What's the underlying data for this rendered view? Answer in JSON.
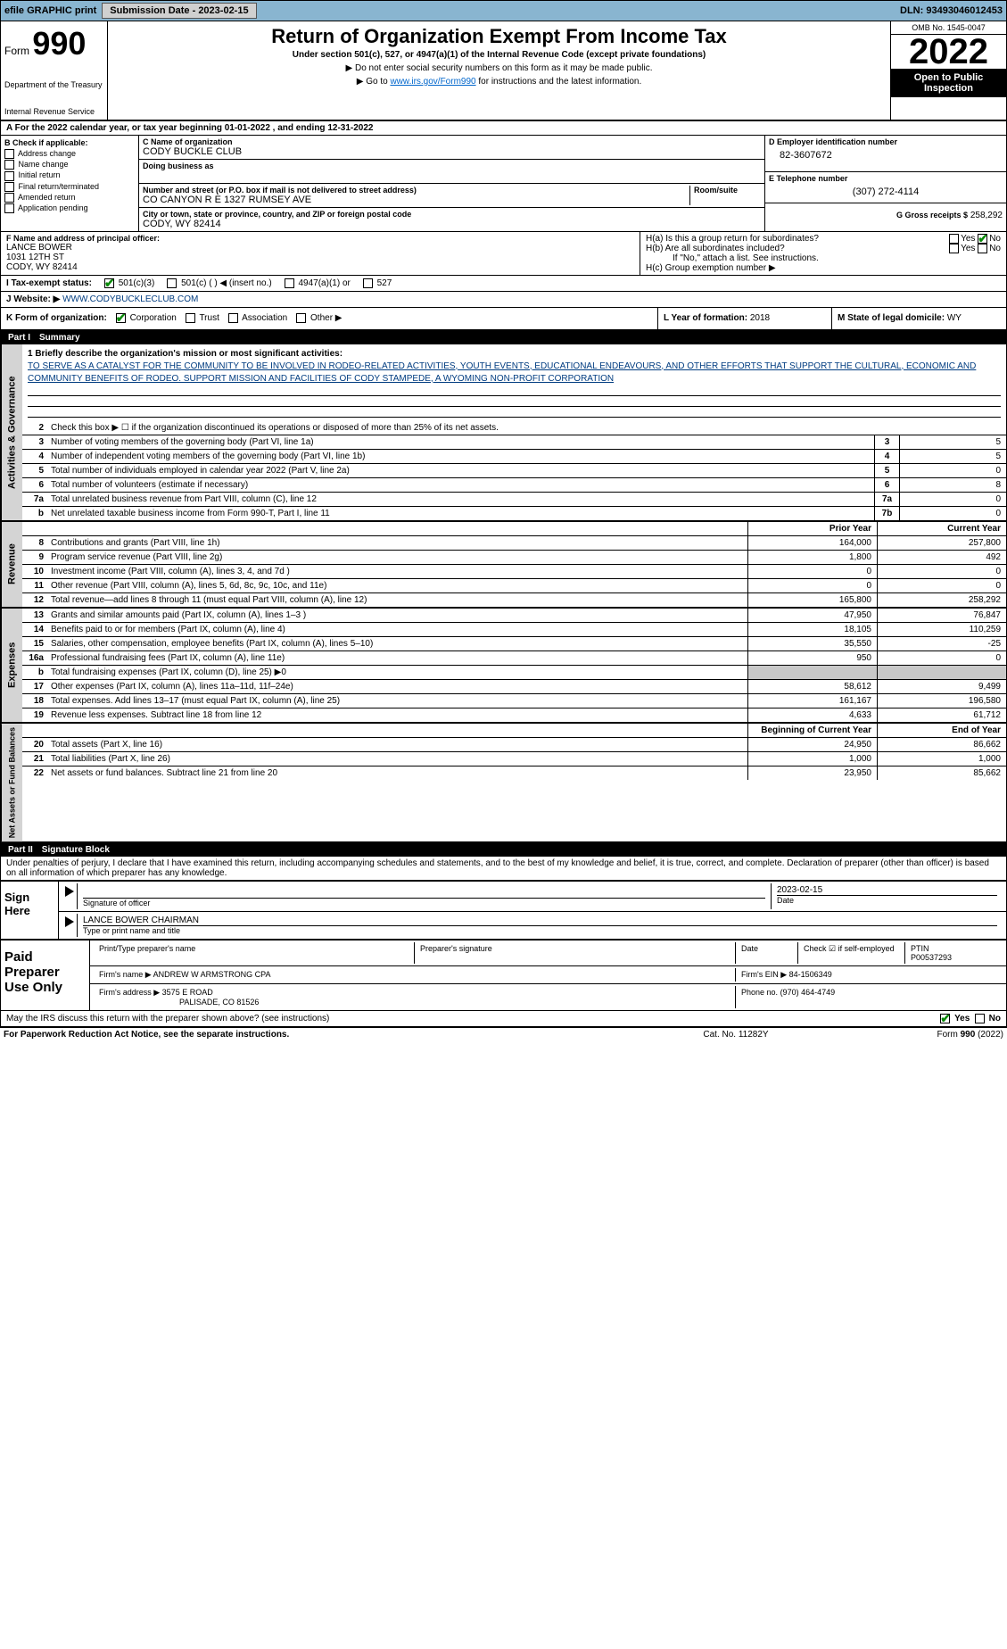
{
  "topbar": {
    "efile": "efile GRAPHIC print",
    "submission_label": "Submission Date - 2023-02-15",
    "dln": "DLN: 93493046012453"
  },
  "header": {
    "form_prefix": "Form",
    "form_num": "990",
    "dept": "Department of the Treasury",
    "irs": "Internal Revenue Service",
    "title": "Return of Organization Exempt From Income Tax",
    "subtitle": "Under section 501(c), 527, or 4947(a)(1) of the Internal Revenue Code (except private foundations)",
    "note1": "▶ Do not enter social security numbers on this form as it may be made public.",
    "note2a": "▶ Go to ",
    "note2_link": "www.irs.gov/Form990",
    "note2b": " for instructions and the latest information.",
    "omb": "OMB No. 1545-0047",
    "year": "2022",
    "open": "Open to Public Inspection"
  },
  "period": {
    "a": "A For the 2022 calendar year, or tax year beginning 01-01-2022    , and ending 12-31-2022"
  },
  "boxB": {
    "title": "B Check if applicable:",
    "items": [
      "Address change",
      "Name change",
      "Initial return",
      "Final return/terminated",
      "Amended return",
      "Application pending"
    ]
  },
  "boxC": {
    "name_label": "C Name of organization",
    "name": "CODY BUCKLE CLUB",
    "dba_label": "Doing business as",
    "street_label": "Number and street (or P.O. box if mail is not delivered to street address)",
    "room_label": "Room/suite",
    "street": "CO CANYON R E 1327 RUMSEY AVE",
    "city_label": "City or town, state or province, country, and ZIP or foreign postal code",
    "city": "CODY, WY  82414"
  },
  "boxD": {
    "label": "D Employer identification number",
    "val": "82-3607672"
  },
  "boxE": {
    "label": "E Telephone number",
    "val": "(307) 272-4114"
  },
  "boxG": {
    "label": "G Gross receipts $",
    "val": "258,292"
  },
  "boxF": {
    "label": "F  Name and address of principal officer:",
    "name": "LANCE BOWER",
    "addr1": "1031 12TH ST",
    "addr2": "CODY, WY  82414"
  },
  "boxH": {
    "a": "H(a)  Is this a group return for subordinates?",
    "b": "H(b)  Are all subordinates included?",
    "note": "If \"No,\" attach a list. See instructions.",
    "c": "H(c)  Group exemption number ▶"
  },
  "yes": "Yes",
  "no": "No",
  "boxI": {
    "label": "I  Tax-exempt status:",
    "opts": [
      "501(c)(3)",
      "501(c) (  ) ◀ (insert no.)",
      "4947(a)(1) or",
      "527"
    ]
  },
  "boxJ": {
    "label": "J  Website: ▶",
    "val": "WWW.CODYBUCKLECLUB.COM"
  },
  "boxK": {
    "label": "K Form of organization:",
    "opts": [
      "Corporation",
      "Trust",
      "Association",
      "Other ▶"
    ]
  },
  "boxL": {
    "label": "L Year of formation:",
    "val": "2018"
  },
  "boxM": {
    "label": "M State of legal domicile:",
    "val": "WY"
  },
  "part1": {
    "num": "Part I",
    "title": "Summary"
  },
  "mission": {
    "intro": "1 Briefly describe the organization's mission or most significant activities:",
    "text": "TO SERVE AS A CATALYST FOR THE COMMUNITY TO BE INVOLVED IN RODEO-RELATED ACTIVITIES, YOUTH EVENTS, EDUCATIONAL ENDEAVOURS, AND OTHER EFFORTS THAT SUPPORT THE CULTURAL, ECONOMIC AND COMMUNITY BENEFITS OF RODEO. SUPPORT MISSION AND FACILITIES OF CODY STAMPEDE, A WYOMING NON-PROFIT CORPORATION"
  },
  "vert": {
    "gov": "Activities & Governance",
    "rev": "Revenue",
    "exp": "Expenses",
    "net": "Net Assets or Fund Balances"
  },
  "govlines": [
    {
      "n": "2",
      "t": "Check this box ▶ ☐  if the organization discontinued its operations or disposed of more than 25% of its net assets."
    },
    {
      "n": "3",
      "t": "Number of voting members of the governing body (Part VI, line 1a)",
      "m": "3",
      "v": "5"
    },
    {
      "n": "4",
      "t": "Number of independent voting members of the governing body (Part VI, line 1b)",
      "m": "4",
      "v": "5"
    },
    {
      "n": "5",
      "t": "Total number of individuals employed in calendar year 2022 (Part V, line 2a)",
      "m": "5",
      "v": "0"
    },
    {
      "n": "6",
      "t": "Total number of volunteers (estimate if necessary)",
      "m": "6",
      "v": "8"
    },
    {
      "n": "7a",
      "t": "Total unrelated business revenue from Part VIII, column (C), line 12",
      "m": "7a",
      "v": "0"
    },
    {
      "n": "b",
      "t": "Net unrelated taxable business income from Form 990-T, Part I, line 11",
      "m": "7b",
      "v": "0"
    }
  ],
  "colhead": {
    "prior": "Prior Year",
    "current": "Current Year",
    "boy": "Beginning of Current Year",
    "eoy": "End of Year"
  },
  "revlines": [
    {
      "n": "8",
      "t": "Contributions and grants (Part VIII, line 1h)",
      "p": "164,000",
      "c": "257,800"
    },
    {
      "n": "9",
      "t": "Program service revenue (Part VIII, line 2g)",
      "p": "1,800",
      "c": "492"
    },
    {
      "n": "10",
      "t": "Investment income (Part VIII, column (A), lines 3, 4, and 7d )",
      "p": "0",
      "c": "0"
    },
    {
      "n": "11",
      "t": "Other revenue (Part VIII, column (A), lines 5, 6d, 8c, 9c, 10c, and 11e)",
      "p": "0",
      "c": "0"
    },
    {
      "n": "12",
      "t": "Total revenue—add lines 8 through 11 (must equal Part VIII, column (A), line 12)",
      "p": "165,800",
      "c": "258,292"
    }
  ],
  "explines": [
    {
      "n": "13",
      "t": "Grants and similar amounts paid (Part IX, column (A), lines 1–3 )",
      "p": "47,950",
      "c": "76,847"
    },
    {
      "n": "14",
      "t": "Benefits paid to or for members (Part IX, column (A), line 4)",
      "p": "18,105",
      "c": "110,259"
    },
    {
      "n": "15",
      "t": "Salaries, other compensation, employee benefits (Part IX, column (A), lines 5–10)",
      "p": "35,550",
      "c": "-25"
    },
    {
      "n": "16a",
      "t": "Professional fundraising fees (Part IX, column (A), line 11e)",
      "p": "950",
      "c": "0"
    },
    {
      "n": "b",
      "t": "Total fundraising expenses (Part IX, column (D), line 25) ▶0",
      "shade": true
    },
    {
      "n": "17",
      "t": "Other expenses (Part IX, column (A), lines 11a–11d, 11f–24e)",
      "p": "58,612",
      "c": "9,499"
    },
    {
      "n": "18",
      "t": "Total expenses. Add lines 13–17 (must equal Part IX, column (A), line 25)",
      "p": "161,167",
      "c": "196,580"
    },
    {
      "n": "19",
      "t": "Revenue less expenses. Subtract line 18 from line 12",
      "p": "4,633",
      "c": "61,712"
    }
  ],
  "netlines": [
    {
      "n": "20",
      "t": "Total assets (Part X, line 16)",
      "p": "24,950",
      "c": "86,662"
    },
    {
      "n": "21",
      "t": "Total liabilities (Part X, line 26)",
      "p": "1,000",
      "c": "1,000"
    },
    {
      "n": "22",
      "t": "Net assets or fund balances. Subtract line 21 from line 20",
      "p": "23,950",
      "c": "85,662"
    }
  ],
  "part2": {
    "num": "Part II",
    "title": "Signature Block"
  },
  "penalties": "Under penalties of perjury, I declare that I have examined this return, including accompanying schedules and statements, and to the best of my knowledge and belief, it is true, correct, and complete. Declaration of preparer (other than officer) is based on all information of which preparer has any knowledge.",
  "sign": {
    "here": "Sign Here",
    "sig_officer": "Signature of officer",
    "date": "Date",
    "date_val": "2023-02-15",
    "name": "LANCE BOWER  CHAIRMAN",
    "type_print": "Type or print name and title"
  },
  "paid": {
    "title": "Paid Preparer Use Only",
    "print_label": "Print/Type preparer's name",
    "sig_label": "Preparer's signature",
    "date_label": "Date",
    "check_label": "Check ☑ if self-employed",
    "ptin_label": "PTIN",
    "ptin": "P00537293",
    "firm_name_label": "Firm's name    ▶",
    "firm_name": "ANDREW W ARMSTRONG CPA",
    "firm_ein_label": "Firm's EIN ▶",
    "firm_ein": "84-1506349",
    "firm_addr_label": "Firm's address ▶",
    "firm_addr1": "3575 E ROAD",
    "firm_addr2": "PALISADE, CO  81526",
    "phone_label": "Phone no.",
    "phone": "(970) 464-4749"
  },
  "discuss": {
    "q": "May the IRS discuss this return with the preparer shown above? (see instructions)"
  },
  "footer": {
    "left": "For Paperwork Reduction Act Notice, see the separate instructions.",
    "mid": "Cat. No. 11282Y",
    "right": "Form 990 (2022)"
  }
}
